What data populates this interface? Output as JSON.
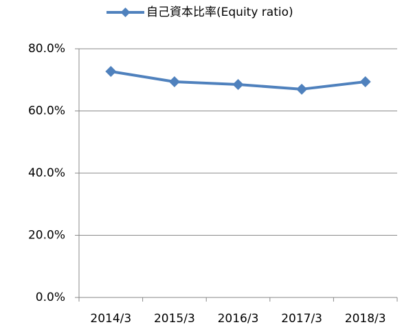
{
  "chart_data": {
    "type": "line",
    "categories": [
      "2014/3",
      "2015/3",
      "2016/3",
      "2017/3",
      "2018/3"
    ],
    "series": [
      {
        "name": "自己資本比率(Equity ratio)",
        "color": "#4f81bd",
        "values": [
          72.7,
          69.4,
          68.5,
          67.0,
          69.4
        ]
      }
    ],
    "ylim": [
      0,
      80
    ],
    "yticks": [
      {
        "value": 0,
        "label": "0.0%"
      },
      {
        "value": 20,
        "label": "20.0%"
      },
      {
        "value": 40,
        "label": "40.0%"
      },
      {
        "value": 60,
        "label": "60.0%"
      },
      {
        "value": 80,
        "label": "80.0%"
      }
    ],
    "grid": true,
    "legend": "top"
  }
}
